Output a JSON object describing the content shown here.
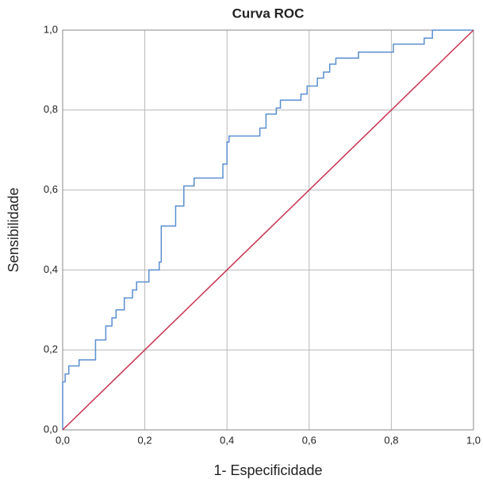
{
  "chart_data": {
    "type": "line",
    "title": "Curva ROC",
    "x_label": "1- Especificidade",
    "y_label": "Sensibilidade",
    "xlim": [
      0,
      1
    ],
    "ylim": [
      0,
      1
    ],
    "xticks": [
      {
        "value": 0,
        "label": "0,0"
      },
      {
        "value": 0.2,
        "label": "0,2"
      },
      {
        "value": 0.4,
        "label": "0,4"
      },
      {
        "value": 0.6,
        "label": "0,6"
      },
      {
        "value": 0.8,
        "label": "0,8"
      },
      {
        "value": 1,
        "label": "1,0"
      }
    ],
    "yticks": [
      {
        "value": 0,
        "label": "0,0"
      },
      {
        "value": 0.2,
        "label": "0,2"
      },
      {
        "value": 0.4,
        "label": "0,4"
      },
      {
        "value": 0.6,
        "label": "0,6"
      },
      {
        "value": 0.8,
        "label": "0,8"
      },
      {
        "value": 1,
        "label": "1,0"
      }
    ],
    "grid": true,
    "series": [
      {
        "color": "#5b8fd0",
        "x": [
          0,
          0,
          0.006,
          0.006,
          0.015,
          0.015,
          0.04,
          0.04,
          0.08,
          0.08,
          0.105,
          0.105,
          0.12,
          0.12,
          0.13,
          0.13,
          0.15,
          0.15,
          0.17,
          0.17,
          0.18,
          0.18,
          0.21,
          0.21,
          0.235,
          0.235,
          0.24,
          0.24,
          0.275,
          0.275,
          0.295,
          0.295,
          0.32,
          0.32,
          0.39,
          0.39,
          0.4,
          0.4,
          0.405,
          0.405,
          0.48,
          0.48,
          0.495,
          0.495,
          0.52,
          0.52,
          0.53,
          0.53,
          0.58,
          0.58,
          0.595,
          0.595,
          0.62,
          0.62,
          0.635,
          0.635,
          0.65,
          0.65,
          0.665,
          0.665,
          0.72,
          0.72,
          0.805,
          0.805,
          0.88,
          0.88,
          0.9,
          0.9,
          1
        ],
        "values": [
          0,
          0.12,
          0.12,
          0.14,
          0.14,
          0.16,
          0.16,
          0.175,
          0.175,
          0.225,
          0.225,
          0.26,
          0.26,
          0.28,
          0.28,
          0.3,
          0.3,
          0.33,
          0.33,
          0.35,
          0.35,
          0.37,
          0.37,
          0.4,
          0.4,
          0.42,
          0.42,
          0.51,
          0.51,
          0.56,
          0.56,
          0.61,
          0.61,
          0.63,
          0.63,
          0.665,
          0.665,
          0.72,
          0.72,
          0.735,
          0.735,
          0.755,
          0.755,
          0.79,
          0.79,
          0.805,
          0.805,
          0.825,
          0.825,
          0.84,
          0.84,
          0.86,
          0.86,
          0.88,
          0.88,
          0.895,
          0.895,
          0.915,
          0.915,
          0.93,
          0.93,
          0.945,
          0.945,
          0.965,
          0.965,
          0.98,
          0.98,
          1,
          1
        ]
      },
      {
        "color": "#c8334f",
        "x": [
          0,
          1
        ],
        "values": [
          0,
          1
        ]
      }
    ]
  }
}
